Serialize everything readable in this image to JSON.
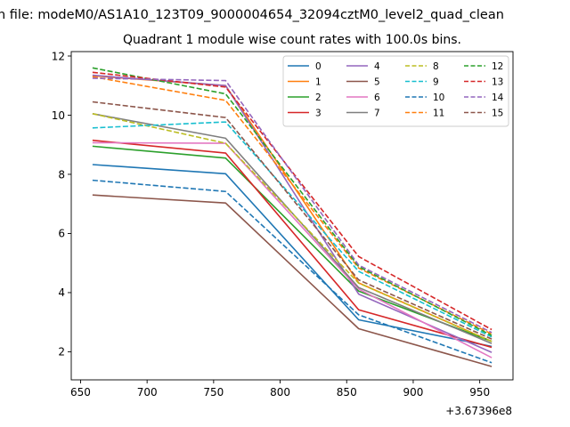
{
  "suptitle": "n file: modeM0/AS1A10_123T09_9000004654_32094cztM0_level2_quad_clean",
  "chart_data": {
    "type": "line",
    "title": "Quadrant 1 module wise count rates with 100.0s bins.",
    "x_offset_label": "+3.67396e8",
    "x": [
      659,
      759,
      859,
      959
    ],
    "xlim": [
      643,
      975
    ],
    "ylim": [
      1.05,
      12.15
    ],
    "xticks": [
      650,
      700,
      750,
      800,
      850,
      900,
      950
    ],
    "yticks": [
      2,
      4,
      6,
      8,
      10,
      12
    ],
    "legend_position": "top-right",
    "series": [
      {
        "name": "0",
        "color": "#1f77b4",
        "dashed": false,
        "values": [
          8.33,
          8.02,
          3.08,
          2.18
        ]
      },
      {
        "name": "1",
        "color": "#ff7f0e",
        "dashed": false,
        "values": [
          11.33,
          11.0,
          4.33,
          2.35
        ]
      },
      {
        "name": "2",
        "color": "#2ca02c",
        "dashed": false,
        "values": [
          8.95,
          8.55,
          4.05,
          2.35
        ]
      },
      {
        "name": "3",
        "color": "#d62728",
        "dashed": false,
        "values": [
          9.15,
          8.72,
          3.42,
          2.15
        ]
      },
      {
        "name": "4",
        "color": "#9467bd",
        "dashed": false,
        "values": [
          11.35,
          11.0,
          3.95,
          1.98
        ]
      },
      {
        "name": "5",
        "color": "#8c564b",
        "dashed": false,
        "values": [
          7.3,
          7.03,
          2.78,
          1.5
        ]
      },
      {
        "name": "6",
        "color": "#e377c2",
        "dashed": false,
        "values": [
          9.07,
          9.05,
          4.12,
          1.8
        ]
      },
      {
        "name": "7",
        "color": "#7f7f7f",
        "dashed": false,
        "values": [
          10.05,
          9.22,
          4.17,
          2.28
        ]
      },
      {
        "name": "8",
        "color": "#bcbd22",
        "dashed": true,
        "values": [
          10.05,
          9.05,
          4.32,
          2.35
        ]
      },
      {
        "name": "9",
        "color": "#17becf",
        "dashed": true,
        "values": [
          9.57,
          9.77,
          4.72,
          2.5
        ]
      },
      {
        "name": "10",
        "color": "#1f77b4",
        "dashed": true,
        "values": [
          7.8,
          7.42,
          3.25,
          1.63
        ]
      },
      {
        "name": "11",
        "color": "#ff7f0e",
        "dashed": true,
        "values": [
          11.3,
          10.5,
          4.83,
          2.6
        ]
      },
      {
        "name": "12",
        "color": "#2ca02c",
        "dashed": true,
        "values": [
          11.6,
          10.72,
          4.88,
          2.55
        ]
      },
      {
        "name": "13",
        "color": "#d62728",
        "dashed": true,
        "values": [
          11.45,
          10.95,
          5.22,
          2.75
        ]
      },
      {
        "name": "14",
        "color": "#9467bd",
        "dashed": true,
        "values": [
          11.25,
          11.17,
          4.93,
          2.65
        ]
      },
      {
        "name": "15",
        "color": "#8c564b",
        "dashed": true,
        "values": [
          10.45,
          9.92,
          4.43,
          2.43
        ]
      }
    ]
  }
}
